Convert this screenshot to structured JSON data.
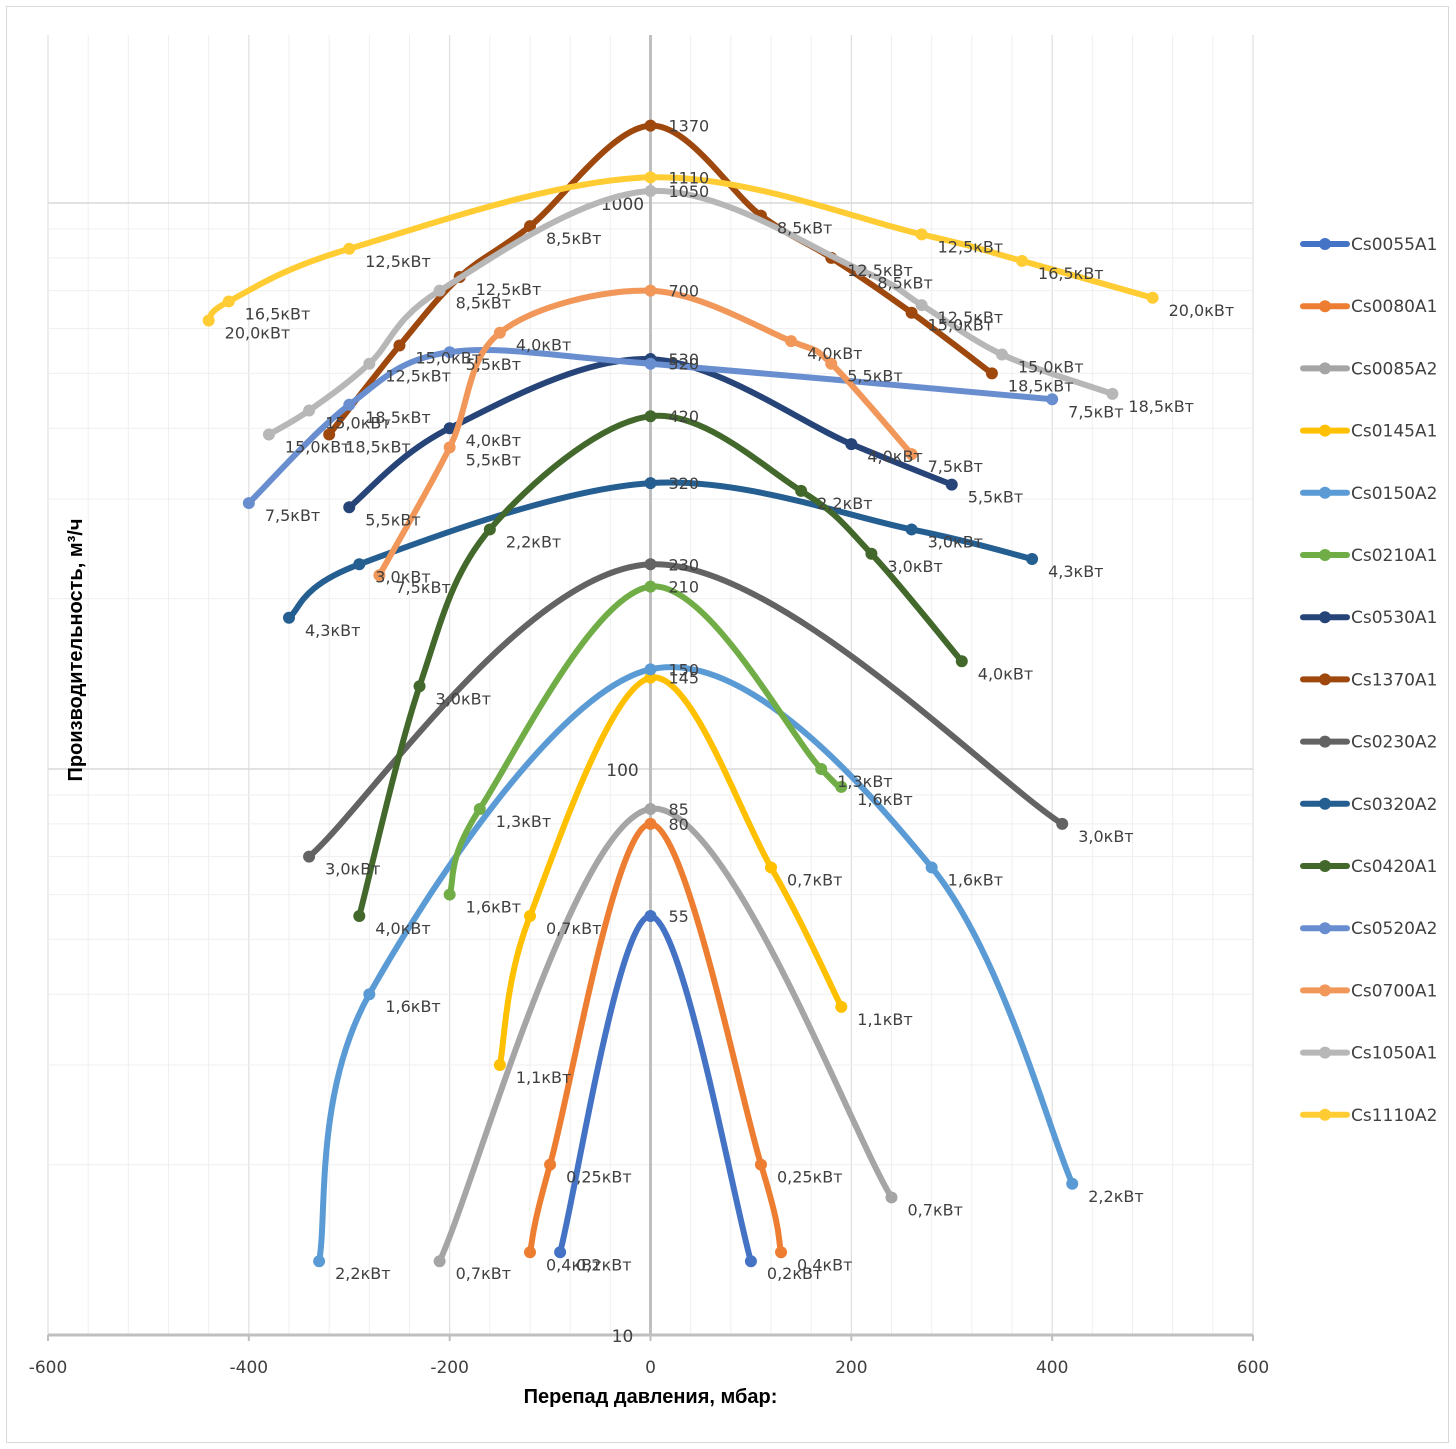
{
  "chart_data": {
    "type": "line",
    "title": "",
    "xlabel": "Перепад давления, мбар:",
    "ylabel": "Производительность, м³/ч",
    "xlim": [
      -600,
      600
    ],
    "ylim": [
      10,
      2000
    ],
    "y_scale": "log",
    "x_ticks": [
      -600,
      -400,
      -200,
      0,
      200,
      400,
      600
    ],
    "x_tick_labels": [
      "-600",
      "-400",
      "-200",
      "0",
      "200",
      "400",
      "600"
    ],
    "y_tick_labels": [
      {
        "y": 10,
        "label": "10"
      },
      {
        "y": 100,
        "label": "100"
      },
      {
        "y": 1000,
        "label": "1000"
      }
    ],
    "grid": true,
    "legend": "right",
    "series": [
      {
        "name": "Cs0055A1",
        "color": "#4472C4",
        "points": [
          [
            -90,
            14,
            "0,2кВт"
          ],
          [
            0,
            55,
            "55"
          ],
          [
            100,
            13.5,
            "0,2кВт"
          ]
        ]
      },
      {
        "name": "Cs0080A1",
        "color": "#ED7D31",
        "points": [
          [
            -120,
            14,
            "0,4кВт"
          ],
          [
            -100,
            20,
            "0,25кВт"
          ],
          [
            0,
            80,
            "80"
          ],
          [
            110,
            20,
            "0,25кВт"
          ],
          [
            130,
            14,
            "0,4кВт"
          ]
        ]
      },
      {
        "name": "Cs0085A2",
        "color": "#A5A5A5",
        "points": [
          [
            -210,
            13.5,
            "0,7кВт"
          ],
          [
            0,
            85,
            "85"
          ],
          [
            240,
            17.5,
            "0,7кВт"
          ]
        ]
      },
      {
        "name": "Cs0145A1",
        "color": "#FFC000",
        "points": [
          [
            -150,
            30,
            "1,1кВт"
          ],
          [
            -120,
            55,
            "0,7кВт"
          ],
          [
            0,
            145,
            "145"
          ],
          [
            120,
            67,
            "0,7кВт"
          ],
          [
            190,
            38,
            "1,1кВт"
          ]
        ]
      },
      {
        "name": "Cs0150A2",
        "color": "#5B9BD5",
        "points": [
          [
            -330,
            13.5,
            "2,2кВт"
          ],
          [
            -280,
            40,
            "1,6кВт"
          ],
          [
            0,
            150,
            "150"
          ],
          [
            280,
            67,
            "1,6кВт"
          ],
          [
            420,
            18.5,
            "2,2кВт"
          ]
        ]
      },
      {
        "name": "Cs0210A1",
        "color": "#70AD47",
        "points": [
          [
            -200,
            60,
            "1,6кВт"
          ],
          [
            -170,
            85,
            "1,3кВт"
          ],
          [
            0,
            210,
            "210"
          ],
          [
            170,
            100,
            "1,3кВт"
          ],
          [
            190,
            93,
            "1,6кВт"
          ]
        ]
      },
      {
        "name": "Cs0530A1",
        "color": "#264478",
        "points": [
          [
            -300,
            290,
            "5,5кВт"
          ],
          [
            -200,
            400,
            "4,0кВт"
          ],
          [
            0,
            530,
            "530"
          ],
          [
            200,
            375,
            "4,0кВт"
          ],
          [
            300,
            318,
            "5,5кВт"
          ]
        ]
      },
      {
        "name": "Cs1370A1",
        "color": "#9E480E",
        "points": [
          [
            -320,
            390,
            "18,5кВт"
          ],
          [
            -250,
            560,
            "15,0кВт"
          ],
          [
            -190,
            740,
            "12,5кВт"
          ],
          [
            -120,
            910,
            "8,5кВт"
          ],
          [
            0,
            1370,
            "1370"
          ],
          [
            110,
            950,
            "8,5кВт"
          ],
          [
            180,
            800,
            "12,5кВт"
          ],
          [
            260,
            640,
            "15,0кВт"
          ],
          [
            340,
            500,
            "18,5кВт"
          ]
        ]
      },
      {
        "name": "Cs0230A2",
        "color": "#636363",
        "points": [
          [
            -340,
            70,
            "3,0кВт"
          ],
          [
            0,
            230,
            "230"
          ],
          [
            410,
            80,
            "3,0кВт"
          ]
        ]
      },
      {
        "name": "Cs0320A2",
        "color": "#255E91",
        "points": [
          [
            -360,
            185,
            "4,3кВт"
          ],
          [
            -290,
            230,
            "3,0кВт"
          ],
          [
            0,
            320,
            "320"
          ],
          [
            260,
            265,
            "3,0кВт"
          ],
          [
            380,
            235,
            "4,3кВт"
          ]
        ]
      },
      {
        "name": "Cs0420A1",
        "color": "#43682B",
        "points": [
          [
            -290,
            55,
            "4,0кВт"
          ],
          [
            -230,
            140,
            "3,0кВт"
          ],
          [
            -160,
            265,
            "2,2кВт"
          ],
          [
            0,
            420,
            "420"
          ],
          [
            150,
            310,
            "2,2кВт"
          ],
          [
            220,
            240,
            "3,0кВт"
          ],
          [
            310,
            155,
            "4,0кВт"
          ]
        ]
      },
      {
        "name": "Cs0520A2",
        "color": "#698ED0",
        "points": [
          [
            -400,
            295,
            "7,5кВт"
          ],
          [
            -300,
            440,
            "18,5кВт"
          ],
          [
            -200,
            545,
            "5,5кВт"
          ],
          [
            0,
            520,
            "520"
          ],
          [
            400,
            450,
            "7,5кВт"
          ]
        ]
      },
      {
        "name": "Cs0700A1",
        "color": "#F1975A",
        "points": [
          [
            -270,
            220,
            "7,5кВт"
          ],
          [
            -200,
            370,
            "5,5кВт"
          ],
          [
            -150,
            590,
            "4,0кВт"
          ],
          [
            0,
            700,
            "700"
          ],
          [
            140,
            570,
            "4,0кВт"
          ],
          [
            180,
            520,
            "5,5кВт"
          ],
          [
            260,
            360,
            "7,5кВт"
          ]
        ]
      },
      {
        "name": "Cs1050A1",
        "color": "#B7B7B7",
        "points": [
          [
            -380,
            390,
            "15,0кВт"
          ],
          [
            -340,
            430,
            "15,0кВт"
          ],
          [
            -280,
            520,
            "12,5кВт"
          ],
          [
            -210,
            700,
            "8,5кВт"
          ],
          [
            0,
            1050,
            "1050"
          ],
          [
            210,
            760,
            "8,5кВт"
          ],
          [
            270,
            660,
            "12,5кВт"
          ],
          [
            350,
            540,
            "15,0кВт"
          ],
          [
            460,
            460,
            "18,5кВт"
          ]
        ]
      },
      {
        "name": "Cs1110A2",
        "color": "#FFCD33",
        "points": [
          [
            -440,
            620,
            "20,0кВт"
          ],
          [
            -420,
            670,
            "16,5кВт"
          ],
          [
            -300,
            830,
            "12,5кВт"
          ],
          [
            0,
            1110,
            "1110"
          ],
          [
            270,
            880,
            "12,5кВт"
          ],
          [
            370,
            790,
            "16,5кВт"
          ],
          [
            500,
            680,
            "20,0кВт"
          ]
        ]
      }
    ]
  }
}
